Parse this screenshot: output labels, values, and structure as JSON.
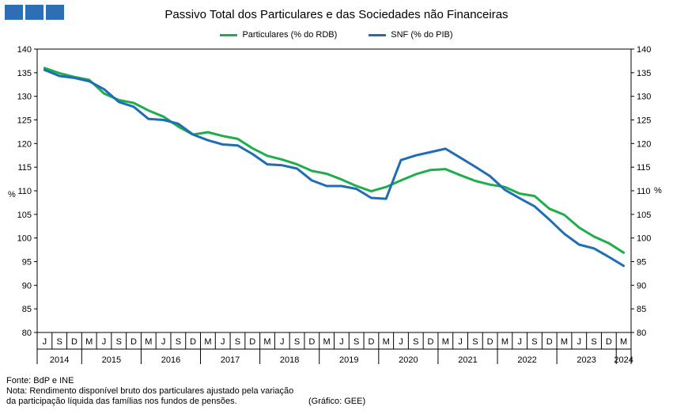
{
  "chart_data": {
    "type": "line",
    "title": "Passivo Total dos Particulares e das Sociedades não Financeiras",
    "ylabel": "%",
    "ylim": [
      80,
      140
    ],
    "yticks": [
      80,
      85,
      90,
      95,
      100,
      105,
      110,
      115,
      120,
      125,
      130,
      135,
      140
    ],
    "legend_position": "top-center",
    "x_quarters": [
      "J",
      "S",
      "D",
      "M",
      "J",
      "S",
      "D",
      "M",
      "J",
      "S",
      "D",
      "M",
      "J",
      "S",
      "D",
      "M",
      "J",
      "S",
      "D",
      "M",
      "J",
      "S",
      "D",
      "M",
      "J",
      "S",
      "D",
      "M",
      "J",
      "S",
      "D",
      "M",
      "J",
      "S",
      "D",
      "M",
      "J",
      "S",
      "D",
      "M"
    ],
    "x": [
      "2014-Q2",
      "2014-Q3",
      "2014-Q4",
      "2015-Q1",
      "2015-Q2",
      "2015-Q3",
      "2015-Q4",
      "2016-Q1",
      "2016-Q2",
      "2016-Q3",
      "2016-Q4",
      "2017-Q1",
      "2017-Q2",
      "2017-Q3",
      "2017-Q4",
      "2018-Q1",
      "2018-Q2",
      "2018-Q3",
      "2018-Q4",
      "2019-Q1",
      "2019-Q2",
      "2019-Q3",
      "2019-Q4",
      "2020-Q1",
      "2020-Q2",
      "2020-Q3",
      "2020-Q4",
      "2021-Q1",
      "2021-Q2",
      "2021-Q3",
      "2021-Q4",
      "2022-Q1",
      "2022-Q2",
      "2022-Q3",
      "2022-Q4",
      "2023-Q1",
      "2023-Q2",
      "2023-Q3",
      "2023-Q4",
      "2024-Q1"
    ],
    "year_labels": [
      "2014",
      "2015",
      "2016",
      "2017",
      "2018",
      "2019",
      "2020",
      "2021",
      "2022",
      "2023",
      "2024"
    ],
    "year_spans": [
      [
        0,
        2
      ],
      [
        3,
        6
      ],
      [
        7,
        10
      ],
      [
        11,
        14
      ],
      [
        15,
        18
      ],
      [
        19,
        22
      ],
      [
        23,
        26
      ],
      [
        27,
        30
      ],
      [
        31,
        34
      ],
      [
        35,
        38
      ],
      [
        39,
        39
      ]
    ],
    "series": [
      {
        "name": "Particulares (% do RDB)",
        "color": "#1fae4b",
        "values": [
          136.0,
          134.9,
          134.1,
          133.5,
          130.6,
          129.2,
          128.6,
          127.0,
          125.7,
          123.6,
          121.9,
          122.4,
          121.6,
          121.0,
          119.0,
          117.4,
          116.6,
          115.6,
          114.2,
          113.6,
          112.4,
          111.0,
          109.9,
          110.8,
          112.2,
          113.5,
          114.4,
          114.6,
          113.3,
          112.1,
          111.3,
          110.8,
          109.4,
          108.9,
          106.2,
          104.9,
          102.2,
          100.3,
          98.9,
          96.9
        ]
      },
      {
        "name": "SNF (% do PIB)",
        "color": "#1f6eb5",
        "values": [
          135.6,
          134.3,
          133.9,
          133.2,
          131.5,
          128.8,
          127.8,
          125.2,
          125.0,
          124.2,
          121.9,
          120.7,
          119.8,
          119.6,
          117.8,
          115.6,
          115.4,
          114.7,
          112.2,
          111.0,
          111.0,
          110.4,
          108.5,
          108.3,
          116.5,
          117.5,
          118.2,
          118.9,
          117.0,
          115.1,
          113.1,
          110.2,
          108.4,
          106.7,
          103.9,
          100.9,
          98.6,
          97.8,
          96.0,
          94.1
        ]
      }
    ]
  },
  "footer": {
    "source": "Fonte: BdP e INE",
    "note_line1": "Nota: Rendimento  disponível bruto dos particulares ajustado  pela variação",
    "note_line2": " da participação líquida das famílias nos fundos de pensões.",
    "credit": "(Gráfico: GEE)"
  }
}
